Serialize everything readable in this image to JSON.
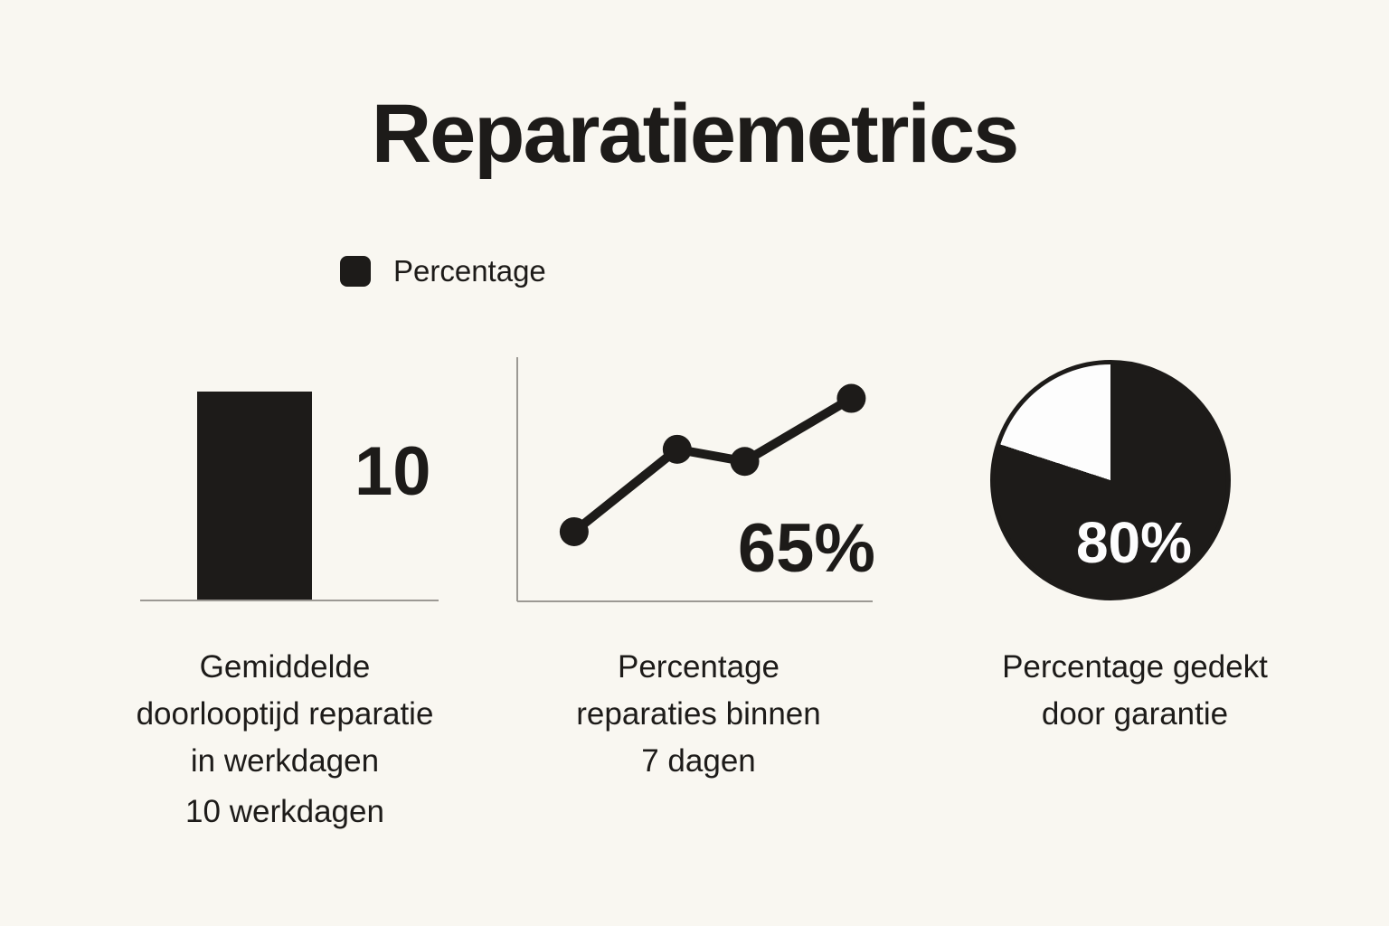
{
  "page": {
    "title": "Reparatiemetrics",
    "background_color": "#f9f7f1",
    "ink_color": "#1d1b19",
    "axis_color": "#9c9994"
  },
  "legend": {
    "swatch_icon": "black-square-swatch",
    "swatch_color": "#1d1b19",
    "label": "Percentage"
  },
  "chart_data": [
    {
      "type": "bar",
      "categories": [
        ""
      ],
      "values": [
        10
      ],
      "value_label": "10",
      "title": "Gemiddelde doorlooptijd reparatie in werkdagen",
      "subtitle": "10 werkdagen",
      "bar_color": "#1d1b19",
      "grid": false,
      "caption_lines": "Gemiddelde\ndoorlooptijd reparatie\nin werkdagen"
    },
    {
      "type": "line",
      "x": [
        1,
        2,
        3,
        4
      ],
      "values": [
        28,
        62,
        57,
        83
      ],
      "x_pct": [
        16,
        45,
        64,
        94
      ],
      "ylim": [
        0,
        100
      ],
      "value_label": "65%",
      "title": "Percentage reparaties binnen 7 dagen",
      "line_color": "#1d1b19",
      "marker": "filled-circle",
      "grid": false,
      "legend_position": "none",
      "caption_lines": "Percentage\nreparaties binnen\n7 dagen"
    },
    {
      "type": "pie",
      "slices": [
        {
          "label": "Percentage",
          "value": 80,
          "color": "#1d1b19"
        },
        {
          "label": "",
          "value": 20,
          "color": "#fdfdfd"
        }
      ],
      "value_label": "80%",
      "title": "Percentage gedekt door garantie",
      "start_angle": "top",
      "caption_lines": "Percentage gedekt\ndoor garantie"
    }
  ]
}
